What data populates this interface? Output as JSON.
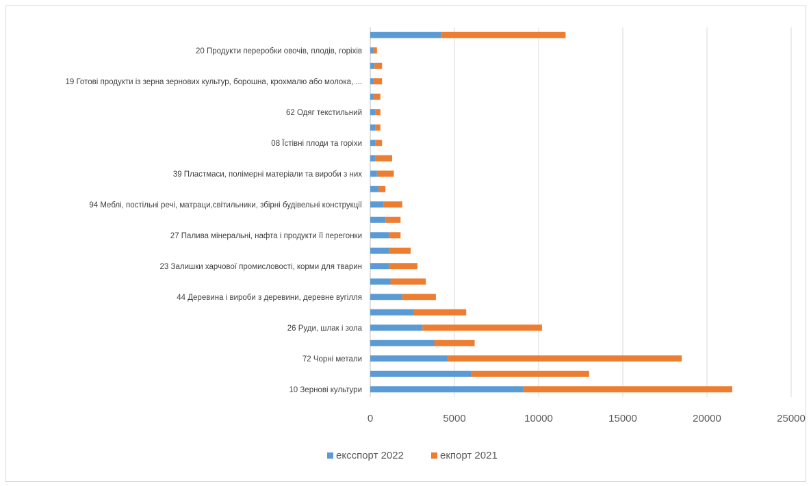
{
  "chart_data": {
    "type": "bar",
    "orientation": "horizontal",
    "stacked": true,
    "categories": [
      "10 Зернові культури",
      "",
      "72 Чорні метали",
      "",
      "26 Руди, шлак і зола",
      "",
      "44 Деревина і вироби з деревини, деревне вугілля",
      "",
      "23 Залишки харчової промисловості,  корми для тварин",
      "",
      "27 Палива мінеральні, нафта і продукти її перегонки",
      "",
      "94 Меблі, постільні речі, матраци,світильники,  збірні будівельні конструкції",
      "",
      "39 Пластмаси, полімерні матеріали та вироби з них",
      "",
      "08 Їстівні плоди та горіхи",
      "",
      "62 Одяг текстильний",
      "",
      "19 Готові продукти із зерна зернових  культур, борошна, крохмалю або молока, ...",
      "",
      "20 Продукти переробки овочів, плодів, горіхів",
      ""
    ],
    "series": [
      {
        "name": "ексспорт 2022",
        "color": "#5b9bd5",
        "values": [
          9100,
          6000,
          4600,
          3800,
          3100,
          2600,
          1900,
          1200,
          1100,
          1100,
          1100,
          900,
          800,
          500,
          400,
          300,
          300,
          300,
          300,
          200,
          200,
          250,
          200,
          4200
        ]
      },
      {
        "name": "екпорт 2021",
        "color": "#ed7d31",
        "values": [
          12400,
          7000,
          13900,
          2400,
          7100,
          3100,
          2000,
          2100,
          1700,
          1300,
          700,
          900,
          1100,
          400,
          1000,
          1000,
          400,
          300,
          300,
          400,
          500,
          450,
          200,
          7400
        ]
      }
    ],
    "xlim": [
      0,
      25000
    ],
    "xticks": [
      "0",
      "5000",
      "10000",
      "15000",
      "20000",
      "25000"
    ],
    "grid": true,
    "legend_position": "bottom"
  }
}
